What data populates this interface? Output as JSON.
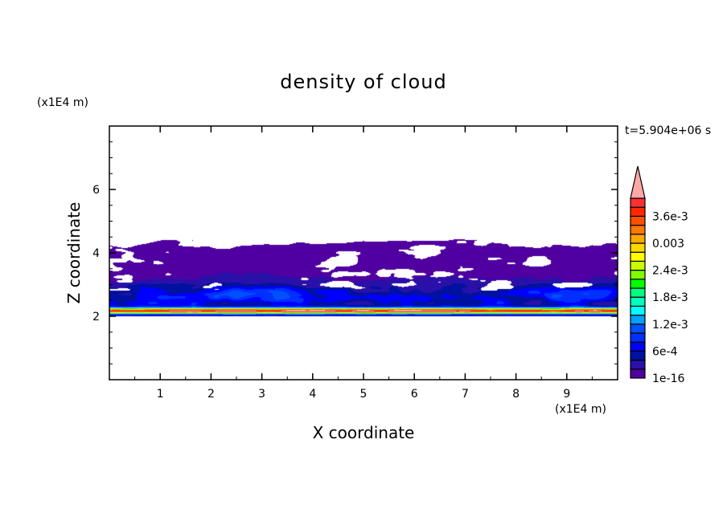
{
  "chart_data": {
    "type": "heatmap",
    "title": "density of cloud",
    "xlabel": "X coordinate",
    "ylabel": "Z coordinate",
    "x_unit": "(x1E4 m)",
    "y_unit": "(x1E4 m)",
    "time_label": "t=5.904e+06 s",
    "xlim": [
      0,
      10
    ],
    "ylim": [
      0,
      8
    ],
    "x_ticks": [
      1,
      2,
      3,
      4,
      5,
      6,
      7,
      8,
      9
    ],
    "x_tick_labels": [
      "1",
      "2",
      "3",
      "4",
      "5",
      "6",
      "7",
      "8",
      "9"
    ],
    "y_ticks": [
      2,
      4,
      6
    ],
    "y_tick_labels": [
      "2",
      "4",
      "6"
    ],
    "colorbar": {
      "levels_min": 0,
      "levels_max": 0.004,
      "level_step": 0.0002,
      "overflow_extension": true,
      "tick_values": [
        0,
        0.0006,
        0.0012,
        0.0018,
        0.0024,
        0.003,
        0.0036
      ],
      "tick_labels": [
        "1e-16",
        "6e-4",
        "1.2e-3",
        "1.8e-3",
        "2.4e-3",
        "0.003",
        "3.6e-3"
      ],
      "colors": [
        "#5000a0",
        "#2810a8",
        "#0010a0",
        "#0000ff",
        "#0030ff",
        "#0050ff",
        "#00a0ff",
        "#00ffff",
        "#00ffc0",
        "#00ff80",
        "#00ff00",
        "#80ff00",
        "#c8ff00",
        "#ffff00",
        "#ffd800",
        "#ffa800",
        "#ff7800",
        "#ff5000",
        "#ff2800",
        "#ff3030"
      ],
      "overflow_color": "#ffa8a8"
    },
    "field_description_values": {
      "cloud_base_z": 2.0,
      "cloud_top_z": 4.3,
      "max_density_z": 2.15
    }
  }
}
